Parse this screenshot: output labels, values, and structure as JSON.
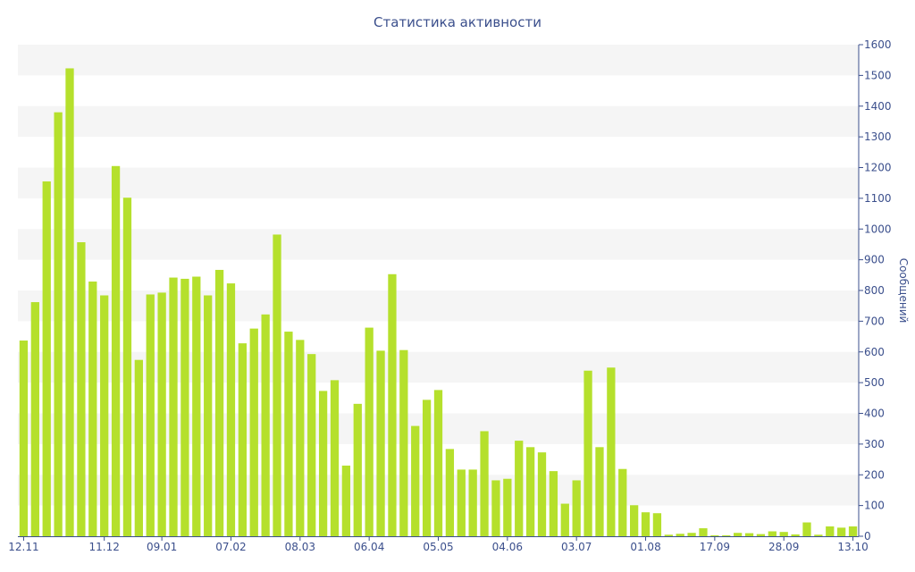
{
  "chart_data": {
    "type": "bar",
    "title": "Статистика активности",
    "ylabel": "Сообщений",
    "ylim": [
      0,
      1600
    ],
    "yticks": [
      0,
      100,
      200,
      300,
      400,
      500,
      600,
      700,
      800,
      900,
      1000,
      1100,
      1200,
      1300,
      1400,
      1500,
      1600
    ],
    "x_tick_labels": [
      "12.11",
      "11.12",
      "09.01",
      "07.02",
      "08.03",
      "06.04",
      "05.05",
      "04.06",
      "03.07",
      "01.08",
      "17.09",
      "28.09",
      "13.10"
    ],
    "x_tick_positions": [
      0,
      7,
      12,
      18,
      24,
      30,
      36,
      42,
      48,
      54,
      60,
      66,
      72
    ],
    "grid": "alternating-bands",
    "bar_color": "#b5e02c",
    "band_color": "#f5f5f5",
    "axis_color": "#3b4f8c",
    "values": [
      637,
      762,
      1155,
      1380,
      1523,
      957,
      829,
      784,
      1205,
      1102,
      574,
      787,
      793,
      842,
      838,
      845,
      784,
      867,
      823,
      628,
      676,
      722,
      982,
      666,
      639,
      593,
      473,
      508,
      230,
      431,
      679,
      604,
      853,
      606,
      359,
      444,
      476,
      284,
      217,
      217,
      342,
      182,
      187,
      311,
      290,
      273,
      212,
      106,
      182,
      539,
      290,
      549,
      219,
      101,
      78,
      75,
      5,
      8,
      11,
      26,
      3,
      3,
      11,
      10,
      7,
      16,
      14,
      6,
      45,
      5,
      32,
      28,
      32
    ]
  }
}
